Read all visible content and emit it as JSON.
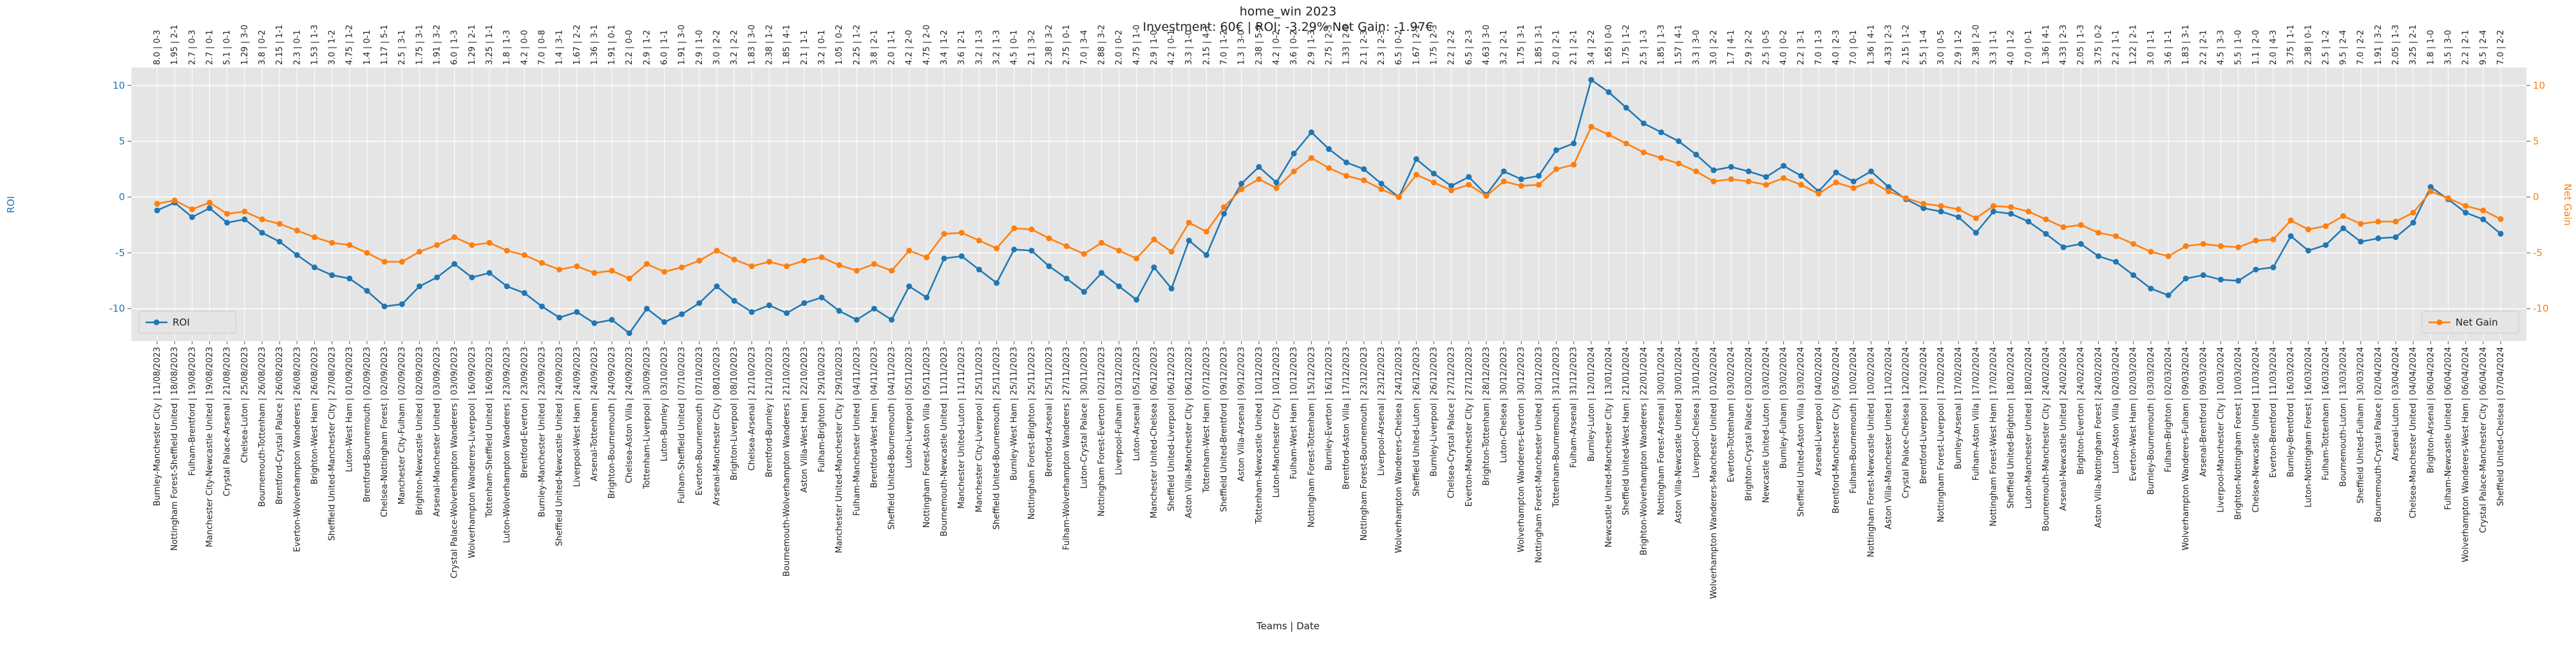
{
  "chart_data": {
    "type": "line",
    "title": "home_win 2023",
    "subtitle": "Investment: 60€ | ROI: -3.29% Net Gain: -1.97€",
    "x_label": "Teams | Date",
    "y_label": "ROI",
    "y2_label": "Net Gain",
    "grid": true,
    "ylim": [
      -12.9,
      11.6
    ],
    "yticks": [
      -10,
      -5,
      0,
      5,
      10
    ],
    "y2lim": [
      -12.9,
      11.6
    ],
    "y2ticks": [
      -10,
      -5,
      0,
      5,
      10
    ],
    "categories": [
      "Burnley-Manchester City | 11/08/2023",
      "Nottingham Forest-Sheffield United | 18/08/2023",
      "Fulham-Brentford | 19/08/2023",
      "Manchester City-Newcastle United | 19/08/2023",
      "Crystal Palace-Arsenal | 21/08/2023",
      "Chelsea-Luton | 25/08/2023",
      "Bournemouth-Tottenham | 26/08/2023",
      "Brentford-Crystal Palace | 26/08/2023",
      "Everton-Wolverhampton Wanderers | 26/08/2023",
      "Brighton-West Ham | 26/08/2023",
      "Sheffield United-Manchester City | 27/08/2023",
      "Luton-West Ham | 01/09/2023",
      "Brentford-Bournemouth | 02/09/2023",
      "Chelsea-Nottingham Forest | 02/09/2023",
      "Manchester City-Fulham | 02/09/2023",
      "Brighton-Newcastle United | 02/09/2023",
      "Arsenal-Manchester United | 03/09/2023",
      "Crystal Palace-Wolverhampton Wanderers | 03/09/2023",
      "Wolverhampton Wanderers-Liverpool | 16/09/2023",
      "Tottenham-Sheffield United | 16/09/2023",
      "Luton-Wolverhampton Wanderers | 23/09/2023",
      "Brentford-Everton | 23/09/2023",
      "Burnley-Manchester United | 23/09/2023",
      "Sheffield United-Newcastle United | 24/09/2023",
      "Liverpool-West Ham | 24/09/2023",
      "Arsenal-Tottenham | 24/09/2023",
      "Brighton-Bournemouth | 24/09/2023",
      "Chelsea-Aston Villa | 24/09/2023",
      "Tottenham-Liverpool | 30/09/2023",
      "Luton-Burnley | 03/10/2023",
      "Fulham-Sheffield United | 07/10/2023",
      "Everton-Bournemouth | 07/10/2023",
      "Arsenal-Manchester City | 08/10/2023",
      "Brighton-Liverpool | 08/10/2023",
      "Chelsea-Arsenal | 21/10/2023",
      "Brentford-Burnley | 21/10/2023",
      "Bournemouth-Wolverhampton Wanderers | 21/10/2023",
      "Aston Villa-West Ham | 22/10/2023",
      "Fulham-Brighton | 29/10/2023",
      "Manchester United-Manchester City | 29/10/2023",
      "Fulham-Manchester United | 04/11/2023",
      "Brentford-West Ham | 04/11/2023",
      "Sheffield United-Bournemouth | 04/11/2023",
      "Luton-Liverpool | 05/11/2023",
      "Nottingham Forest-Aston Villa | 05/11/2023",
      "Bournemouth-Newcastle United | 11/11/2023",
      "Manchester United-Luton | 11/11/2023",
      "Manchester City-Liverpool | 25/11/2023",
      "Sheffield United-Bournemouth | 25/11/2023",
      "Burnley-West Ham | 25/11/2023",
      "Nottingham Forest-Brighton | 25/11/2023",
      "Brentford-Arsenal | 25/11/2023",
      "Fulham-Wolverhampton Wanderers | 27/11/2023",
      "Luton-Crystal Palace | 30/11/2023",
      "Nottingham Forest-Everton | 02/12/2023",
      "Liverpool-Fulham | 03/12/2023",
      "Luton-Arsenal | 05/12/2023",
      "Manchester United-Chelsea | 06/12/2023",
      "Sheffield United-Liverpool | 06/12/2023",
      "Aston Villa-Manchester City | 06/12/2023",
      "Tottenham-West Ham | 07/12/2023",
      "Sheffield United-Brentford | 09/12/2023",
      "Aston Villa-Arsenal | 09/12/2023",
      "Tottenham-Newcastle United | 10/12/2023",
      "Luton-Manchester City | 10/12/2023",
      "Fulham-West Ham | 10/12/2023",
      "Nottingham Forest-Tottenham | 15/12/2023",
      "Burnley-Everton | 16/12/2023",
      "Brentford-Aston Villa | 17/12/2023",
      "Nottingham Forest-Bournemouth | 23/12/2023",
      "Liverpool-Arsenal | 23/12/2023",
      "Wolverhampton Wanderers-Chelsea | 24/12/2023",
      "Sheffield United-Luton | 26/12/2023",
      "Burnley-Liverpool | 26/12/2023",
      "Chelsea-Crystal Palace | 27/12/2023",
      "Everton-Manchester City | 27/12/2023",
      "Brighton-Tottenham | 28/12/2023",
      "Luton-Chelsea | 30/12/2023",
      "Wolverhampton Wanderers-Everton | 30/12/2023",
      "Nottingham Forest-Manchester United | 30/12/2023",
      "Tottenham-Bournemouth | 31/12/2023",
      "Fulham-Arsenal | 31/12/2023",
      "Burnley-Luton | 12/01/2024",
      "Newcastle United-Manchester City | 13/01/2024",
      "Sheffield United-West Ham | 21/01/2024",
      "Brighton-Wolverhampton Wanderers | 22/01/2024",
      "Nottingham Forest-Arsenal | 30/01/2024",
      "Aston Villa-Newcastle United | 30/01/2024",
      "Liverpool-Chelsea | 31/01/2024",
      "Wolverhampton Wanderers-Manchester United | 01/02/2024",
      "Everton-Tottenham | 03/02/2024",
      "Brighton-Crystal Palace | 03/02/2024",
      "Newcastle United-Luton | 03/02/2024",
      "Burnley-Fulham | 03/02/2024",
      "Sheffield United-Aston Villa | 03/02/2024",
      "Arsenal-Liverpool | 04/02/2024",
      "Brentford-Manchester City | 05/02/2024",
      "Fulham-Bournemouth | 10/02/2024",
      "Nottingham Forest-Newcastle United | 10/02/2024",
      "Aston Villa-Manchester United | 11/02/2024",
      "Crystal Palace-Chelsea | 12/02/2024",
      "Brentford-Liverpool | 17/02/2024",
      "Nottingham Forest-Liverpool | 17/02/2024",
      "Burnley-Arsenal | 17/02/2024",
      "Fulham-Aston Villa | 17/02/2024",
      "Nottingham Forest-West Ham | 17/02/2024",
      "Sheffield United-Brighton | 18/02/2024",
      "Luton-Manchester United | 18/02/2024",
      "Bournemouth-Manchester City | 24/02/2024",
      "Arsenal-Newcastle United | 24/02/2024",
      "Brighton-Everton | 24/02/2024",
      "Aston Villa-Nottingham Forest | 24/02/2024",
      "Luton-Aston Villa | 02/03/2024",
      "Everton-West Ham | 02/03/2024",
      "Burnley-Bournemouth | 03/03/2024",
      "Fulham-Brighton | 02/03/2024",
      "Wolverhampton Wanderers-Fulham | 09/03/2024",
      "Arsenal-Brentford | 09/03/2024",
      "Liverpool-Manchester City | 10/03/2024",
      "Brighton-Nottingham Forest | 10/03/2024",
      "Chelsea-Newcastle United | 11/03/2024",
      "Everton-Brentford | 11/03/2024",
      "Burnley-Brentford | 16/03/2024",
      "Luton-Nottingham Forest | 16/03/2024",
      "Fulham-Tottenham | 16/03/2024",
      "Bournemouth-Luton | 13/03/2024",
      "Sheffield United-Fulham | 30/03/2024",
      "Bournemouth-Crystal Palace | 02/04/2024",
      "Arsenal-Luton | 03/04/2024",
      "Chelsea-Manchester United | 04/04/2024",
      "Brighton-Arsenal | 06/04/2024",
      "Fulham-Newcastle United | 06/04/2024",
      "Wolverhampton Wanderers-West Ham | 06/04/2024",
      "Crystal Palace-Manchester City | 06/04/2024",
      "Sheffield United-Chelsea | 07/04/2024"
    ],
    "annotations": [
      "8.0 | 0-3",
      "1.95 | 2-1",
      "2.7 | 0-3",
      "2.7 | 0-1",
      "5.1 | 0-1",
      "1.29 | 3-0",
      "3.8 | 0-2",
      "2.15 | 1-1",
      "2.3 | 0-1",
      "1.53 | 1-3",
      "3.0 | 1-2",
      "4.75 | 1-2",
      "1.4 | 0-1",
      "1.17 | 5-1",
      "2.5 | 3-1",
      "1.75 | 3-1",
      "1.91 | 3-2",
      "6.0 | 1-3",
      "1.29 | 2-1",
      "3.25 | 1-1",
      "1.8 | 1-3",
      "4.2 | 0-0",
      "7.0 | 0-8",
      "1.4 | 3-1",
      "1.67 | 2-2",
      "1.36 | 3-1",
      "1.91 | 0-1",
      "2.2 | 0-0",
      "2.9 | 1-2",
      "6.0 | 1-1",
      "1.91 | 3-0",
      "2.9 | 1-0",
      "3.0 | 2-2",
      "3.2 | 2-2",
      "1.83 | 3-0",
      "2.38 | 1-2",
      "1.85 | 4-1",
      "2.1 | 1-1",
      "3.2 | 0-1",
      "1.05 | 0-2",
      "2.25 | 1-2",
      "3.8 | 2-1",
      "2.0 | 1-1",
      "4.2 | 2-0",
      "4.75 | 2-0",
      "3.4 | 1-2",
      "3.6 | 2-1",
      "3.2 | 1-3",
      "3.2 | 1-3",
      "4.5 | 0-1",
      "2.1 | 3-2",
      "2.38 | 3-2",
      "2.75 | 0-1",
      "7.0 | 3-4",
      "2.88 | 3-2",
      "2.0 | 0-2",
      "4.75 | 1-0",
      "2.9 | 1-0",
      "4.2 | 0-1",
      "3.3 | 1-0",
      "2.15 | 4-1",
      "7.0 | 1-2",
      "1.3 | 3-0",
      "2.38 | 5-0",
      "4.2 | 0-2",
      "3.6 | 0-2",
      "2.9 | 1-3",
      "2.75 | 2-3",
      "1.33 | 2-0",
      "2.1 | 2-3",
      "2.3 | 2-3",
      "6.5 | 0-2",
      "1.67 | 2-1",
      "1.75 | 2-3",
      "2.2 | 2-2",
      "6.5 | 2-3",
      "4.63 | 3-0",
      "3.2 | 2-1",
      "1.75 | 3-1",
      "1.85 | 3-1",
      "2.0 | 2-1",
      "2.1 | 2-1",
      "3.4 | 2-2",
      "1.65 | 0-0",
      "1.75 | 1-2",
      "2.5 | 1-3",
      "1.85 | 1-3",
      "1.57 | 4-1",
      "3.3 | 3-0",
      "3.0 | 2-2",
      "1.7 | 4-1",
      "2.9 | 2-2",
      "2.5 | 0-5",
      "4.0 | 0-2",
      "2.2 | 3-1",
      "7.0 | 1-3",
      "4.0 | 2-3",
      "7.0 | 0-1",
      "1.36 | 4-1",
      "4.33 | 2-3",
      "2.15 | 1-2",
      "5.5 | 1-4",
      "3.0 | 0-5",
      "2.9 | 1-2",
      "2.38 | 2-0",
      "3.3 | 1-1",
      "4.0 | 1-2",
      "7.0 | 0-1",
      "1.36 | 4-1",
      "4.33 | 2-3",
      "2.05 | 1-3",
      "3.75 | 0-2",
      "2.2 | 1-1",
      "1.22 | 2-1",
      "3.0 | 1-1",
      "3.6 | 1-1",
      "1.83 | 3-1",
      "2.2 | 2-1",
      "4.5 | 3-3",
      "5.5 | 1-0",
      "1.1 | 2-0",
      "2.0 | 4-3",
      "3.75 | 1-1",
      "2.38 | 0-1",
      "2.5 | 1-2",
      "9.5 | 2-4",
      "7.0 | 2-2",
      "1.91 | 3-2",
      "2.05 | 1-3",
      "3.25 | 2-1",
      "1.8 | 1-0",
      "3.5 | 3-0",
      "2.2 | 2-1",
      "9.5 | 2-4",
      "7.0 | 2-2"
    ],
    "series": [
      {
        "name": "ROI",
        "color": "#1f77b4",
        "axis": "y",
        "legend": "lower left",
        "values": [
          -1.2,
          -0.5,
          -1.8,
          -1,
          -2.3,
          -2,
          -3.2,
          -4,
          -5.2,
          -6.3,
          -7,
          -7.3,
          -8.4,
          -9.8,
          -9.6,
          -8,
          -7.2,
          -6,
          -7.2,
          -6.8,
          -8,
          -8.6,
          -9.8,
          -10.8,
          -10.3,
          -11.3,
          -11,
          -12.2,
          -10,
          -11.2,
          -10.5,
          -9.5,
          -8,
          -9.3,
          -10.3,
          -9.7,
          -10.4,
          -9.5,
          -9,
          -10.2,
          -11,
          -10,
          -11,
          -8,
          -9,
          -5.5,
          -5.3,
          -6.5,
          -7.7,
          -4.7,
          -4.8,
          -6.2,
          -7.3,
          -8.5,
          -6.8,
          -8,
          -9.2,
          -6.3,
          -8.2,
          -3.9,
          -5.2,
          -1.5,
          1.2,
          2.7,
          1.3,
          3.9,
          5.8,
          4.3,
          3.1,
          2.5,
          1.2,
          0,
          3.4,
          2.1,
          1,
          1.8,
          0.2,
          2.3,
          1.6,
          1.9,
          4.2,
          4.8,
          10.5,
          9.4,
          8,
          6.6,
          5.8,
          5,
          3.8,
          2.4,
          2.7,
          2.3,
          1.8,
          2.8,
          1.9,
          0.5,
          2.2,
          1.4,
          2.3,
          0.9,
          -0.2,
          -1,
          -1.3,
          -1.8,
          -3.2,
          -1.3,
          -1.5,
          -2.2,
          -3.3,
          -4.5,
          -4.2,
          -5.3,
          -5.8,
          -7,
          -8.2,
          -8.8,
          -7.3,
          -7,
          -7.4,
          -7.5,
          -6.5,
          -6.3,
          -3.5,
          -4.8,
          -4.3,
          -2.8,
          -4,
          -3.7,
          -3.6,
          -2.3,
          0.9,
          -0.2,
          -1.4,
          -2,
          -3.29
        ]
      },
      {
        "name": "Net Gain",
        "color": "#ff7f0e",
        "axis": "y2",
        "legend": "lower right",
        "values": [
          -0.6,
          -0.3,
          -1.1,
          -0.5,
          -1.5,
          -1.3,
          -2,
          -2.4,
          -3,
          -3.6,
          -4.1,
          -4.3,
          -5,
          -5.8,
          -5.8,
          -4.9,
          -4.3,
          -3.6,
          -4.3,
          -4.1,
          -4.8,
          -5.2,
          -5.9,
          -6.5,
          -6.2,
          -6.8,
          -6.6,
          -7.3,
          -6,
          -6.7,
          -6.3,
          -5.7,
          -4.8,
          -5.6,
          -6.2,
          -5.8,
          -6.2,
          -5.7,
          -5.4,
          -6.1,
          -6.6,
          -6,
          -6.6,
          -4.8,
          -5.4,
          -3.3,
          -3.2,
          -3.9,
          -4.6,
          -2.8,
          -2.9,
          -3.7,
          -4.4,
          -5.1,
          -4.1,
          -4.8,
          -5.5,
          -3.8,
          -4.9,
          -2.3,
          -3.1,
          -0.9,
          0.7,
          1.6,
          0.8,
          2.3,
          3.5,
          2.6,
          1.9,
          1.5,
          0.7,
          0,
          2,
          1.3,
          0.6,
          1.1,
          0.1,
          1.4,
          1,
          1.1,
          2.5,
          2.9,
          6.3,
          5.6,
          4.8,
          4,
          3.5,
          3,
          2.3,
          1.4,
          1.6,
          1.4,
          1.1,
          1.7,
          1.1,
          0.3,
          1.3,
          0.8,
          1.4,
          0.5,
          -0.1,
          -0.6,
          -0.8,
          -1.1,
          -1.9,
          -0.8,
          -0.9,
          -1.3,
          -2,
          -2.7,
          -2.5,
          -3.2,
          -3.5,
          -4.2,
          -4.9,
          -5.3,
          -4.4,
          -4.2,
          -4.4,
          -4.5,
          -3.9,
          -3.8,
          -2.1,
          -2.9,
          -2.6,
          -1.7,
          -2.4,
          -2.2,
          -2.2,
          -1.4,
          0.5,
          -0.1,
          -0.8,
          -1.2,
          -1.97
        ]
      }
    ]
  }
}
